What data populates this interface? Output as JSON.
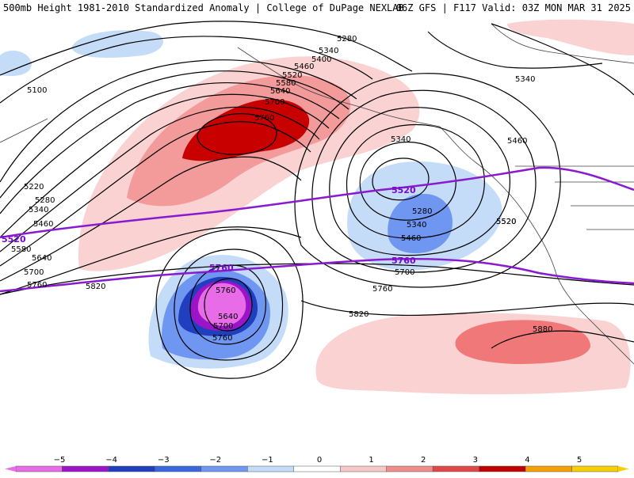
{
  "header": {
    "title_left": "500mb Height 1981-2010 Standardized Anomaly | College of DuPage NEXLAB",
    "title_right": "06Z GFS | F117 Valid: 03Z MON MAR 31 2025"
  },
  "map": {
    "contour_labels": [
      "5100",
      "5220",
      "5280",
      "5340",
      "5460",
      "5580",
      "5640",
      "5700",
      "5760",
      "5820",
      "5280",
      "5340",
      "5400",
      "5460",
      "5520",
      "5580",
      "5640",
      "5700",
      "5760",
      "5340",
      "5340",
      "5280",
      "5340",
      "5460",
      "5520",
      "5700",
      "5760",
      "5820",
      "5880",
      "5640",
      "5700",
      "5760",
      "5760",
      "5460",
      "5520"
    ],
    "highlight_labels": [
      "5520",
      "5520",
      "5760",
      "5760"
    ]
  },
  "legend": {
    "ticks": [
      "−5",
      "−4",
      "−3",
      "−2",
      "−1",
      "0",
      "1",
      "2",
      "3",
      "4",
      "5"
    ],
    "colors": [
      "#e86ce8",
      "#9b14c8",
      "#1f3fbf",
      "#3a66e0",
      "#6f96f0",
      "#c4dcf8",
      "#ffffff",
      "#f8c8c8",
      "#f08c8c",
      "#e04848",
      "#c00000",
      "#f4a000",
      "#f8d000"
    ]
  }
}
